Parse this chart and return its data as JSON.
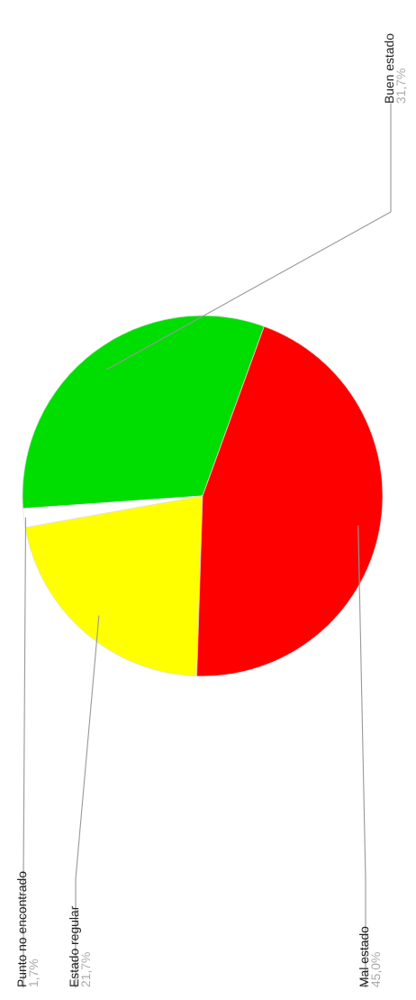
{
  "chart_data": {
    "type": "pie",
    "categories": [
      "Buen estado",
      "Punto no encontrado",
      "Estado regular",
      "Mal estado"
    ],
    "values": [
      31.7,
      1.7,
      21.7,
      45.0
    ],
    "value_labels": [
      "31,7%",
      "1,7%",
      "21,7%",
      "45,0%"
    ],
    "colors": [
      "#00dd00",
      "#ffffff",
      "#ffff00",
      "#ff0000"
    ],
    "legend": false
  }
}
